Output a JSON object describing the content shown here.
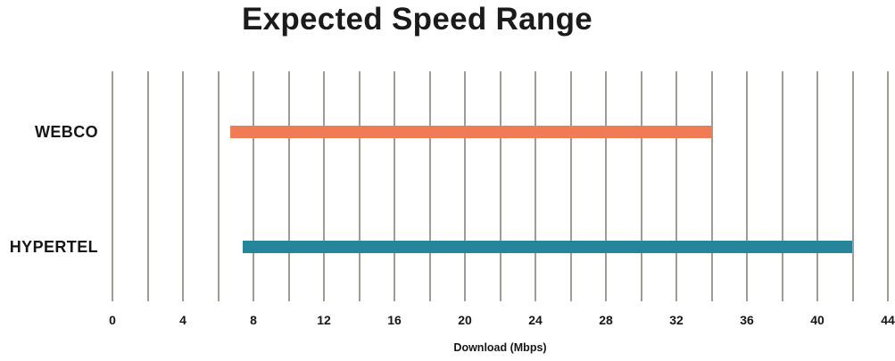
{
  "title": "Expected Speed Range",
  "chart_data": {
    "type": "bar",
    "subtype": "horizontal-range-bars",
    "title": "Expected Speed Range",
    "categories": [
      "WEBCO",
      "HYPERTEL"
    ],
    "series": [
      {
        "name": "WEBCO",
        "range_mbps": [
          6.7,
          34
        ],
        "color": "#f07c55"
      },
      {
        "name": "HYPERTEL",
        "range_mbps": [
          7.4,
          42
        ],
        "color": "#26849b"
      }
    ],
    "xlabel": "Download (Mbps)",
    "xlim": [
      0,
      44
    ],
    "tick_labels": [
      0,
      4,
      8,
      12,
      16,
      20,
      24,
      28,
      32,
      36,
      40,
      44
    ],
    "gridline_interval": 2,
    "grid": true,
    "legend": false,
    "gridline_color": "#9f9b95",
    "text_color": "#161616",
    "background_color": "#ffffff"
  }
}
